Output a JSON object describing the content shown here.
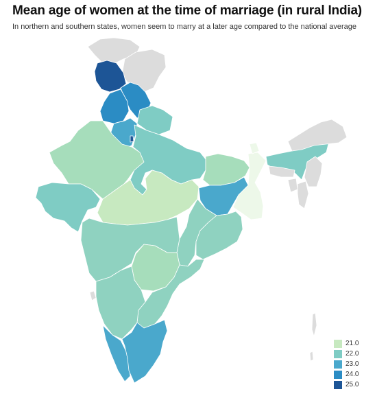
{
  "header": {
    "title": "Mean age of women at the time of marriage (in rural India)",
    "subtitle": "In northern and southern states, women seem to marry at a later age compared to the national average"
  },
  "colors": {
    "no_data": "#dcdcdc",
    "scale": {
      "20.5": "#edf8e9",
      "21": "#c7e9c0",
      "21.5": "#a6ddbb",
      "22": "#7fccc4",
      "22.5": "#8fd2c0",
      "23": "#4aa8cc",
      "24": "#2b8cc4",
      "25": "#1d5596"
    }
  },
  "legend": {
    "items": [
      {
        "label": "21.0",
        "color": "#c7e9c0"
      },
      {
        "label": "22.0",
        "color": "#7fccc4"
      },
      {
        "label": "23.0",
        "color": "#4aa8cc"
      },
      {
        "label": "24.0",
        "color": "#2b8cc4"
      },
      {
        "label": "25.0",
        "color": "#1d5596"
      }
    ]
  },
  "regions": [
    {
      "name": "pok-region",
      "value": null
    },
    {
      "name": "aksai-chin-region",
      "value": null
    },
    {
      "name": "jammu-kashmir",
      "value": 25
    },
    {
      "name": "himachal-pradesh",
      "value": 24
    },
    {
      "name": "punjab",
      "value": 24
    },
    {
      "name": "uttarakhand",
      "value": 22
    },
    {
      "name": "haryana",
      "value": 23
    },
    {
      "name": "delhi",
      "value": 25
    },
    {
      "name": "rajasthan",
      "value": 21.5
    },
    {
      "name": "uttar-pradesh",
      "value": 22
    },
    {
      "name": "bihar",
      "value": 21.5
    },
    {
      "name": "gujarat",
      "value": 22
    },
    {
      "name": "madhya-pradesh",
      "value": 21
    },
    {
      "name": "jharkhand",
      "value": 23
    },
    {
      "name": "west-bengal",
      "value": 20.5
    },
    {
      "name": "chhattisgarh",
      "value": 22.5
    },
    {
      "name": "odisha",
      "value": 22.5
    },
    {
      "name": "maharashtra",
      "value": 22.5
    },
    {
      "name": "telangana",
      "value": 21.5
    },
    {
      "name": "andhra-pradesh",
      "value": 22.5
    },
    {
      "name": "karnataka",
      "value": 22.5
    },
    {
      "name": "goa",
      "value": null
    },
    {
      "name": "kerala",
      "value": 23
    },
    {
      "name": "tamil-nadu",
      "value": 23
    },
    {
      "name": "sikkim",
      "value": 20.5
    },
    {
      "name": "assam",
      "value": 22
    },
    {
      "name": "arunachal-pradesh",
      "value": null
    },
    {
      "name": "meghalaya",
      "value": null
    },
    {
      "name": "tripura",
      "value": null
    },
    {
      "name": "mizoram",
      "value": null
    },
    {
      "name": "manipur-nagaland",
      "value": null
    },
    {
      "name": "andaman-islands",
      "value": null
    }
  ]
}
